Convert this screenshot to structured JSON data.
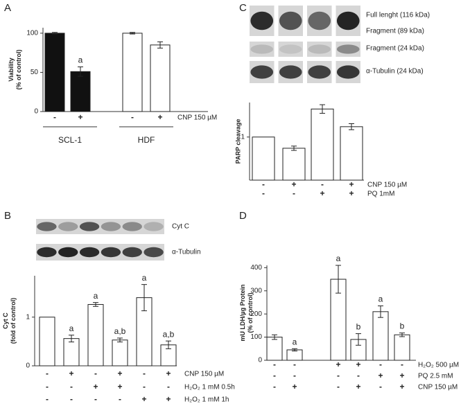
{
  "chart_data": [
    {
      "panel": "A",
      "type": "bar",
      "y_label": [
        "Viability",
        "(% of control)"
      ],
      "values": [
        100,
        51,
        100,
        85
      ],
      "errors": [
        1,
        6,
        1,
        4
      ],
      "colors": [
        "#111111",
        "#111111",
        "#ffffff",
        "#ffffff"
      ],
      "ylim": [
        0,
        107
      ],
      "yticks": [
        0,
        50,
        100
      ],
      "annotations": [
        null,
        "a",
        null,
        null
      ],
      "conditions": [
        {
          "label": "CNP 150 µM",
          "signs": [
            "-",
            "+",
            "-",
            "+"
          ]
        }
      ],
      "groups": [
        "SCL-1",
        "HDF"
      ]
    },
    {
      "panel": "B",
      "type": "bar",
      "y_label": [
        "Cyt C",
        "(fold of control)"
      ],
      "blots": [
        "Cyt C",
        "α-Tubulin"
      ],
      "values": [
        1,
        0.56,
        1.26,
        0.53,
        1.4,
        0.43
      ],
      "errors": [
        0,
        0.07,
        0.04,
        0.04,
        0.27,
        0.08
      ],
      "colors": [
        "#ffffff",
        "#ffffff",
        "#ffffff",
        "#ffffff",
        "#ffffff",
        "#ffffff"
      ],
      "ylim": [
        0,
        1.85
      ],
      "yticks": [
        0,
        1
      ],
      "annotations": [
        null,
        "a",
        "a",
        "a,b",
        "a",
        "a,b"
      ],
      "conditions": [
        {
          "label": "CNP 150 µM",
          "signs": [
            "-",
            "+",
            "-",
            "+",
            "-",
            "+"
          ]
        },
        {
          "label": "H₂O₂ 1 mM 0.5h",
          "signs": [
            "-",
            "-",
            "+",
            "+",
            "-",
            "-"
          ]
        },
        {
          "label": "H₂O₂ 1 mM 1h",
          "signs": [
            "-",
            "-",
            "-",
            "-",
            "+",
            "+"
          ]
        }
      ]
    },
    {
      "panel": "C",
      "type": "bar",
      "y_label": [
        "PARP cleavage"
      ],
      "blots": [
        "Full lenght (116 kDa)",
        "Fragment (89 kDa)",
        "Fragment (24 kDa)",
        "α-Tubulin (24 kDa)"
      ],
      "values": [
        1,
        0.74,
        1.65,
        1.24
      ],
      "errors": [
        0,
        0.05,
        0.1,
        0.07
      ],
      "colors": [
        "#ffffff",
        "#ffffff",
        "#ffffff",
        "#ffffff"
      ],
      "ylim": [
        0,
        1.8
      ],
      "yticks": [
        1
      ],
      "conditions": [
        {
          "label": "CNP 150 µM",
          "signs": [
            "-",
            "+",
            "-",
            "+"
          ]
        },
        {
          "label": "PQ 1mM",
          "signs": [
            "-",
            "-",
            "+",
            "+"
          ]
        }
      ]
    },
    {
      "panel": "D",
      "type": "bar",
      "y_label": [
        "mU LDH/µg Protein",
        "(% of control)"
      ],
      "values": [
        100,
        45,
        350,
        90,
        210,
        110
      ],
      "errors": [
        10,
        5,
        60,
        25,
        25,
        8
      ],
      "colors": [
        "#ffffff",
        "#ffffff",
        "#ffffff",
        "#ffffff",
        "#ffffff",
        "#ffffff"
      ],
      "ylim": [
        0,
        410
      ],
      "yticks": [
        0,
        100,
        200,
        300,
        400
      ],
      "annotations": [
        null,
        "a",
        "a",
        "b",
        "a",
        "b"
      ],
      "conditions": [
        {
          "label": "H₂O₂ 500 µM",
          "signs": [
            "-",
            "-",
            "+",
            "+",
            "-",
            "-"
          ]
        },
        {
          "label": "PQ 2.5 mM",
          "signs": [
            "-",
            "-",
            "-",
            "-",
            "+",
            "+"
          ]
        },
        {
          "label": "CNP 150 µM",
          "signs": [
            "-",
            "+",
            "-",
            "+",
            "-",
            "+"
          ]
        }
      ]
    }
  ]
}
